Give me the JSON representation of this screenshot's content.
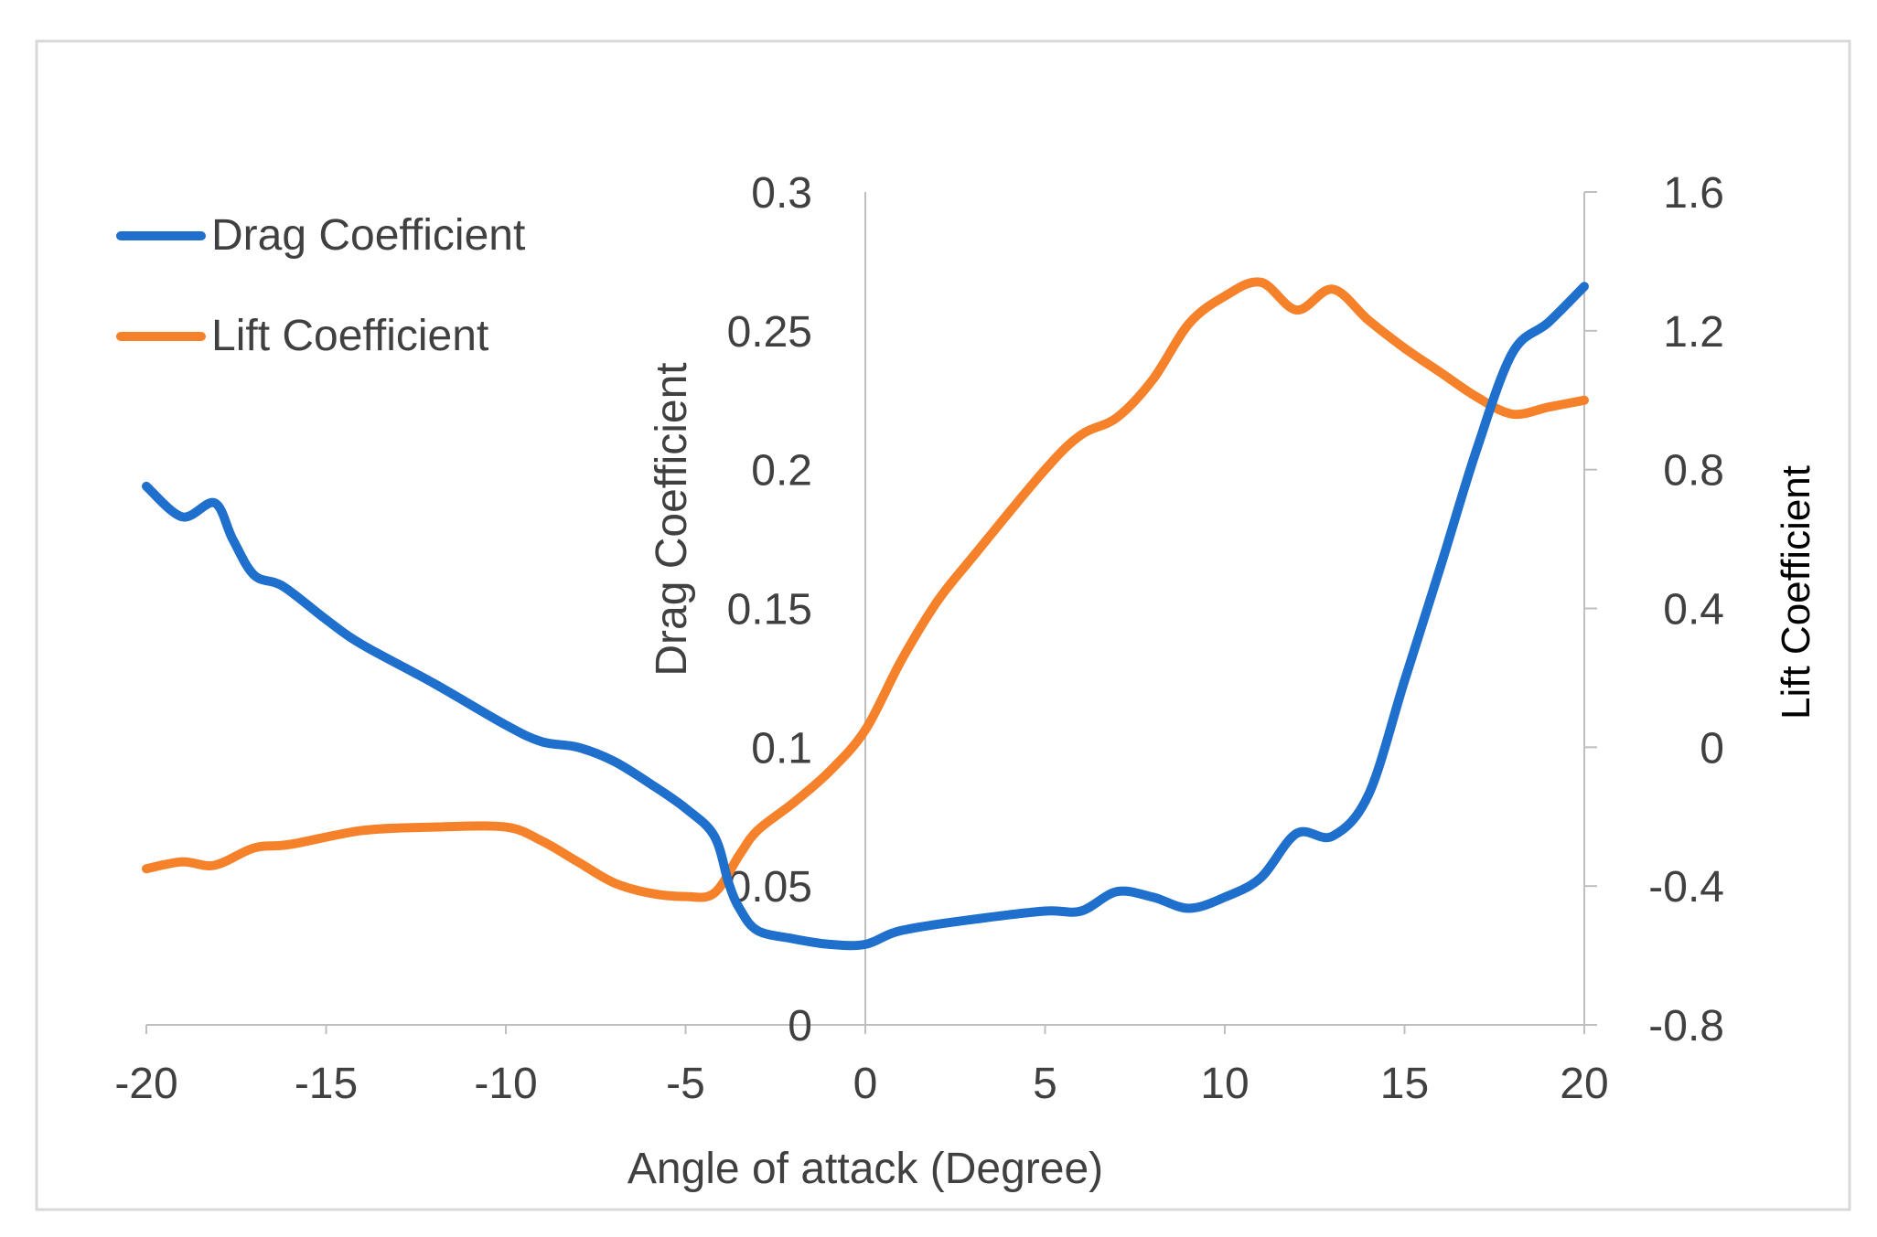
{
  "chart_data": {
    "type": "line",
    "title": "",
    "xlabel": "Angle of attack (Degree)",
    "ylabel": "Drag Coefficient",
    "y2label": "Lift Coefficient",
    "xlim": [
      -20,
      20
    ],
    "ylim": [
      0,
      0.3
    ],
    "y2lim": [
      -0.8,
      1.6
    ],
    "x_ticks": [
      "-20",
      "-15",
      "-10",
      "-5",
      "0",
      "5",
      "10",
      "15",
      "20"
    ],
    "y_ticks": [
      "0",
      "0.05",
      "0.1",
      "0.15",
      "0.2",
      "0.25",
      "0.3"
    ],
    "y2_ticks": [
      "-0.8",
      "-0.4",
      "0",
      "0.4",
      "0.8",
      "1.2",
      "1.6"
    ],
    "legend_position": "top-left",
    "grid": false,
    "series": [
      {
        "name": "Drag Coefficient",
        "axis": "left",
        "color": "#1f6fcc",
        "x": [
          -20,
          -19,
          -18.1,
          -17.6,
          -17,
          -16.2,
          -15,
          -14,
          -12,
          -10,
          -9,
          -8,
          -7,
          -6,
          -5,
          -4.2,
          -3.8,
          -3.5,
          -3,
          -2,
          -1,
          0,
          1,
          3,
          5,
          6,
          7,
          8,
          9,
          10,
          11,
          12,
          13,
          14,
          15,
          16,
          17,
          18,
          19,
          20
        ],
        "values": [
          0.194,
          0.183,
          0.188,
          0.175,
          0.162,
          0.158,
          0.146,
          0.137,
          0.123,
          0.108,
          0.102,
          0.1,
          0.095,
          0.087,
          0.078,
          0.068,
          0.051,
          0.042,
          0.034,
          0.031,
          0.029,
          0.029,
          0.034,
          0.038,
          0.041,
          0.041,
          0.048,
          0.046,
          0.042,
          0.046,
          0.053,
          0.069,
          0.068,
          0.083,
          0.124,
          0.165,
          0.207,
          0.242,
          0.253,
          0.266
        ]
      },
      {
        "name": "Lift Coefficient",
        "axis": "right",
        "color": "#f5822a",
        "x": [
          -20,
          -19,
          -18.1,
          -17,
          -16,
          -14,
          -12,
          -10,
          -9,
          -8,
          -7,
          -6,
          -5,
          -4.2,
          -3.5,
          -3,
          -2,
          -1,
          0,
          1,
          2,
          3,
          5,
          6,
          7,
          8,
          9,
          10,
          11,
          12,
          13,
          14,
          15,
          16,
          17,
          18,
          19,
          20
        ],
        "values": [
          -0.35,
          -0.33,
          -0.34,
          -0.29,
          -0.28,
          -0.24,
          -0.23,
          -0.23,
          -0.27,
          -0.33,
          -0.39,
          -0.42,
          -0.43,
          -0.42,
          -0.31,
          -0.24,
          -0.16,
          -0.07,
          0.05,
          0.25,
          0.42,
          0.55,
          0.8,
          0.9,
          0.95,
          1.06,
          1.22,
          1.3,
          1.34,
          1.26,
          1.32,
          1.23,
          1.15,
          1.08,
          1.01,
          0.96,
          0.98,
          1.0
        ]
      }
    ]
  }
}
